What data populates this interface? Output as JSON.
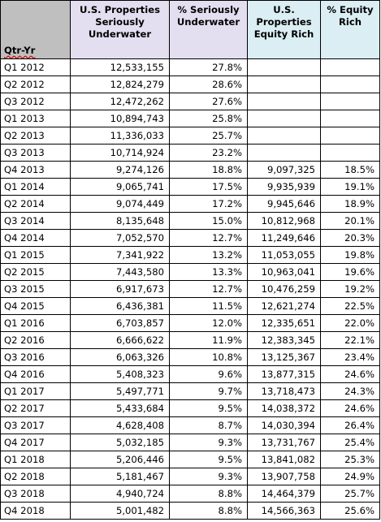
{
  "headers": {
    "qtr": "Qtr-Yr",
    "us_seriously_underwater": "U.S. Properties Seriously Underwater",
    "pct_seriously_underwater": "% Seriously Underwater",
    "us_equity_rich": "U.S. Properties Equity Rich",
    "pct_equity_rich": "% Equity Rich"
  },
  "rows": [
    {
      "qtr": "Q1 2012",
      "under": "12,533,155",
      "under_pct": "27.8%",
      "rich": "",
      "rich_pct": ""
    },
    {
      "qtr": "Q2 2012",
      "under": "12,824,279",
      "under_pct": "28.6%",
      "rich": "",
      "rich_pct": ""
    },
    {
      "qtr": "Q3 2012",
      "under": "12,472,262",
      "under_pct": "27.6%",
      "rich": "",
      "rich_pct": ""
    },
    {
      "qtr": "Q1 2013",
      "under": "10,894,743",
      "under_pct": "25.8%",
      "rich": "",
      "rich_pct": ""
    },
    {
      "qtr": "Q2 2013",
      "under": "11,336,033",
      "under_pct": "25.7%",
      "rich": "",
      "rich_pct": ""
    },
    {
      "qtr": "Q3 2013",
      "under": "10,714,924",
      "under_pct": "23.2%",
      "rich": "",
      "rich_pct": ""
    },
    {
      "qtr": "Q4 2013",
      "under": "9,274,126",
      "under_pct": "18.8%",
      "rich": "9,097,325",
      "rich_pct": "18.5%"
    },
    {
      "qtr": "Q1 2014",
      "under": "9,065,741",
      "under_pct": "17.5%",
      "rich": "9,935,939",
      "rich_pct": "19.1%"
    },
    {
      "qtr": "Q2 2014",
      "under": "9,074,449",
      "under_pct": "17.2%",
      "rich": "9,945,646",
      "rich_pct": "18.9%"
    },
    {
      "qtr": "Q3 2014",
      "under": "8,135,648",
      "under_pct": "15.0%",
      "rich": "10,812,968",
      "rich_pct": "20.1%"
    },
    {
      "qtr": "Q4 2014",
      "under": "7,052,570",
      "under_pct": "12.7%",
      "rich": "11,249,646",
      "rich_pct": "20.3%"
    },
    {
      "qtr": "Q1 2015",
      "under": "7,341,922",
      "under_pct": "13.2%",
      "rich": "11,053,055",
      "rich_pct": "19.8%"
    },
    {
      "qtr": "Q2 2015",
      "under": "7,443,580",
      "under_pct": "13.3%",
      "rich": "10,963,041",
      "rich_pct": "19.6%"
    },
    {
      "qtr": "Q3 2015",
      "under": "6,917,673",
      "under_pct": "12.7%",
      "rich": "10,476,259",
      "rich_pct": "19.2%"
    },
    {
      "qtr": "Q4 2015",
      "under": "6,436,381",
      "under_pct": "11.5%",
      "rich": "12,621,274",
      "rich_pct": "22.5%"
    },
    {
      "qtr": "Q1 2016",
      "under": "6,703,857",
      "under_pct": "12.0%",
      "rich": "12,335,651",
      "rich_pct": "22.0%"
    },
    {
      "qtr": "Q2 2016",
      "under": "6,666,622",
      "under_pct": "11.9%",
      "rich": "12,383,345",
      "rich_pct": "22.1%"
    },
    {
      "qtr": "Q3 2016",
      "under": "6,063,326",
      "under_pct": "10.8%",
      "rich": "13,125,367",
      "rich_pct": "23.4%"
    },
    {
      "qtr": "Q4 2016",
      "under": "5,408,323",
      "under_pct": "9.6%",
      "rich": "13,877,315",
      "rich_pct": "24.6%"
    },
    {
      "qtr": "Q1 2017",
      "under": "5,497,771",
      "under_pct": "9.7%",
      "rich": "13,718,473",
      "rich_pct": "24.3%"
    },
    {
      "qtr": "Q2 2017",
      "under": "5,433,684",
      "under_pct": "9.5%",
      "rich": "14,038,372",
      "rich_pct": "24.6%"
    },
    {
      "qtr": "Q3 2017",
      "under": "4,628,408",
      "under_pct": "8.7%",
      "rich": "14,030,394",
      "rich_pct": "26.4%"
    },
    {
      "qtr": "Q4 2017",
      "under": "5,032,185",
      "under_pct": "9.3%",
      "rich": "13,731,767",
      "rich_pct": "25.4%"
    },
    {
      "qtr": "Q1 2018",
      "under": "5,206,446",
      "under_pct": "9.5%",
      "rich": "13,841,082",
      "rich_pct": "25.3%"
    },
    {
      "qtr": "Q2 2018",
      "under": "5,181,467",
      "under_pct": "9.3%",
      "rich": "13,907,758",
      "rich_pct": "24.9%"
    },
    {
      "qtr": "Q3 2018",
      "under": "4,940,724",
      "under_pct": "8.8%",
      "rich": "14,464,379",
      "rich_pct": "25.7%"
    },
    {
      "qtr": "Q4 2018",
      "under": "5,001,482",
      "under_pct": "8.8%",
      "rich": "14,566,363",
      "rich_pct": "25.6%"
    }
  ]
}
